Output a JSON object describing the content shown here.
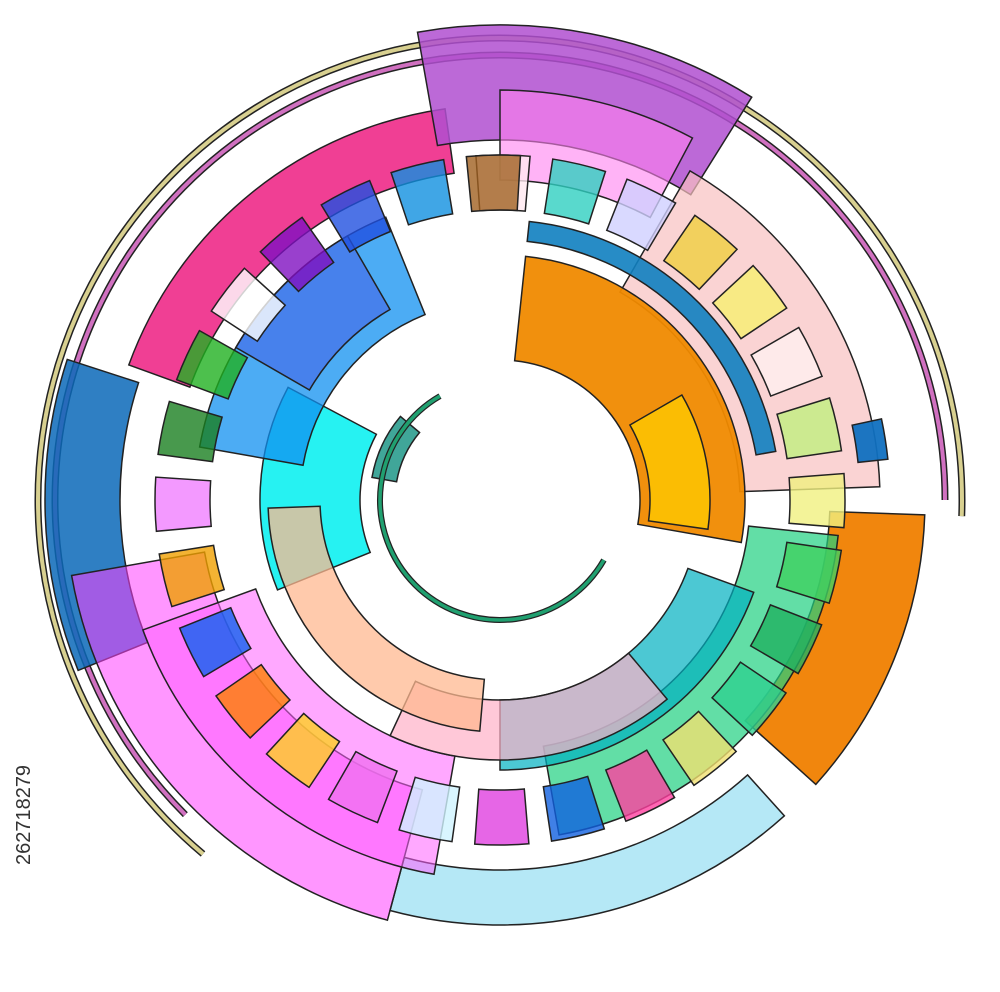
{
  "stock_id": "262718279"
}
